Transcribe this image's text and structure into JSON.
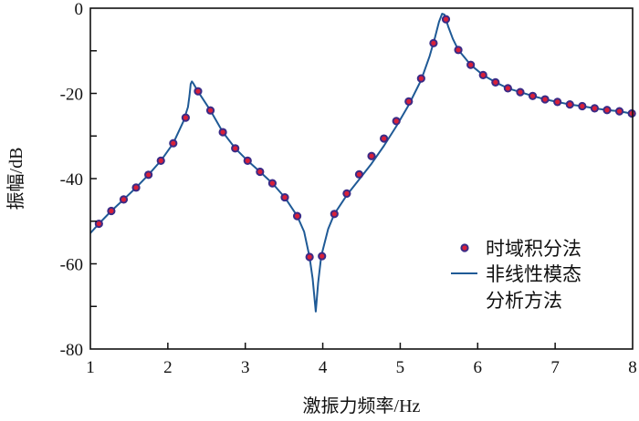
{
  "chart_data": {
    "type": "line",
    "title": "",
    "xlabel": "激振力频率/Hz",
    "ylabel": "振幅/dB",
    "xlim": [
      1,
      8
    ],
    "ylim": [
      -80,
      0
    ],
    "xticks": [
      "1",
      "2",
      "3",
      "4",
      "5",
      "6",
      "7",
      "8"
    ],
    "yticks": [
      "0",
      "-20",
      "-40",
      "-60",
      "-80"
    ],
    "grid": false,
    "legend_position": "lower-right",
    "colors": {
      "line": "#1f5a96",
      "marker_edge": "#3b2b86",
      "marker_fill": "#d8203a"
    },
    "series": [
      {
        "name": "时域积分法",
        "style": "scatter",
        "points": [
          [
            1.11,
            -50.6
          ],
          [
            1.27,
            -47.6
          ],
          [
            1.43,
            -44.9
          ],
          [
            1.59,
            -42.1
          ],
          [
            1.75,
            -39.1
          ],
          [
            1.91,
            -35.8
          ],
          [
            2.07,
            -31.7
          ],
          [
            2.23,
            -25.7
          ],
          [
            2.39,
            -19.5
          ],
          [
            2.55,
            -24.0
          ],
          [
            2.71,
            -29.1
          ],
          [
            2.87,
            -32.9
          ],
          [
            3.03,
            -35.8
          ],
          [
            3.19,
            -38.4
          ],
          [
            3.35,
            -41.1
          ],
          [
            3.51,
            -44.4
          ],
          [
            3.67,
            -48.8
          ],
          [
            3.83,
            -58.4
          ],
          [
            3.99,
            -58.2
          ],
          [
            4.15,
            -48.3
          ],
          [
            4.31,
            -43.5
          ],
          [
            4.47,
            -39.0
          ],
          [
            4.63,
            -34.7
          ],
          [
            4.79,
            -30.6
          ],
          [
            4.95,
            -26.5
          ],
          [
            5.11,
            -21.9
          ],
          [
            5.27,
            -16.5
          ],
          [
            5.43,
            -8.2
          ],
          [
            5.59,
            -2.6
          ],
          [
            5.75,
            -9.8
          ],
          [
            5.91,
            -13.3
          ],
          [
            6.07,
            -15.7
          ],
          [
            6.23,
            -17.4
          ],
          [
            6.39,
            -18.8
          ],
          [
            6.55,
            -19.7
          ],
          [
            6.71,
            -20.6
          ],
          [
            6.87,
            -21.4
          ],
          [
            7.03,
            -22.0
          ],
          [
            7.19,
            -22.6
          ],
          [
            7.35,
            -23.0
          ],
          [
            7.51,
            -23.5
          ],
          [
            7.67,
            -23.9
          ],
          [
            7.83,
            -24.2
          ],
          [
            7.99,
            -24.7
          ]
        ]
      },
      {
        "name": "非线性模态分析方法",
        "name_lines": [
          "非线性模态",
          "分析方法"
        ],
        "style": "line",
        "points": [
          [
            1.0,
            -52.8
          ],
          [
            1.11,
            -50.6
          ],
          [
            1.27,
            -47.6
          ],
          [
            1.43,
            -44.9
          ],
          [
            1.59,
            -42.1
          ],
          [
            1.75,
            -39.1
          ],
          [
            1.91,
            -35.8
          ],
          [
            2.07,
            -31.7
          ],
          [
            2.2,
            -26.6
          ],
          [
            2.26,
            -23.2
          ],
          [
            2.28,
            -20.5
          ],
          [
            2.295,
            -17.8
          ],
          [
            2.31,
            -17.2
          ],
          [
            2.33,
            -17.7
          ],
          [
            2.39,
            -19.6
          ],
          [
            2.55,
            -24.0
          ],
          [
            2.71,
            -29.1
          ],
          [
            2.87,
            -32.9
          ],
          [
            3.03,
            -35.8
          ],
          [
            3.19,
            -38.4
          ],
          [
            3.35,
            -41.1
          ],
          [
            3.51,
            -44.4
          ],
          [
            3.67,
            -48.8
          ],
          [
            3.76,
            -52.5
          ],
          [
            3.83,
            -58.4
          ],
          [
            3.87,
            -63.5
          ],
          [
            3.91,
            -71.2
          ],
          [
            3.94,
            -64.5
          ],
          [
            3.98,
            -58.2
          ],
          [
            4.07,
            -51.8
          ],
          [
            4.15,
            -48.3
          ],
          [
            4.31,
            -43.9
          ],
          [
            4.47,
            -40.2
          ],
          [
            4.63,
            -36.5
          ],
          [
            4.79,
            -32.3
          ],
          [
            4.95,
            -27.7
          ],
          [
            5.11,
            -22.7
          ],
          [
            5.27,
            -16.9
          ],
          [
            5.38,
            -11.2
          ],
          [
            5.45,
            -6.8
          ],
          [
            5.5,
            -3.2
          ],
          [
            5.54,
            -1.3
          ],
          [
            5.57,
            -1.5
          ],
          [
            5.62,
            -4.3
          ],
          [
            5.68,
            -7.2
          ],
          [
            5.75,
            -9.8
          ],
          [
            5.91,
            -13.3
          ],
          [
            6.07,
            -15.7
          ],
          [
            6.23,
            -17.4
          ],
          [
            6.39,
            -18.8
          ],
          [
            6.55,
            -19.7
          ],
          [
            6.71,
            -20.6
          ],
          [
            6.87,
            -21.4
          ],
          [
            7.03,
            -22.0
          ],
          [
            7.19,
            -22.6
          ],
          [
            7.35,
            -23.0
          ],
          [
            7.51,
            -23.5
          ],
          [
            7.67,
            -23.9
          ],
          [
            7.83,
            -24.2
          ],
          [
            8.0,
            -24.8
          ]
        ]
      }
    ]
  }
}
